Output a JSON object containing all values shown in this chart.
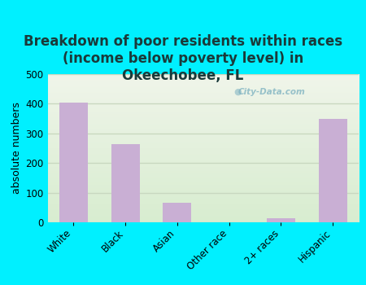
{
  "categories": [
    "White",
    "Black",
    "Asian",
    "Other race",
    "2+ races",
    "Hispanic"
  ],
  "values": [
    405,
    265,
    65,
    0,
    15,
    350
  ],
  "bar_color": "#c9afd4",
  "title": "Breakdown of poor residents within races\n(income below poverty level) in\nOkeechobee, FL",
  "ylabel": "absolute numbers",
  "ylim": [
    0,
    500
  ],
  "yticks": [
    0,
    100,
    200,
    300,
    400,
    500
  ],
  "background_color": "#00f0ff",
  "grad_top": "#f0f5ea",
  "grad_bottom": "#d8edd0",
  "grid_color": "#c8d8c0",
  "watermark": "City-Data.com",
  "title_fontsize": 12,
  "ylabel_fontsize": 9,
  "tick_fontsize": 8.5,
  "title_color": "#1a3a3a"
}
